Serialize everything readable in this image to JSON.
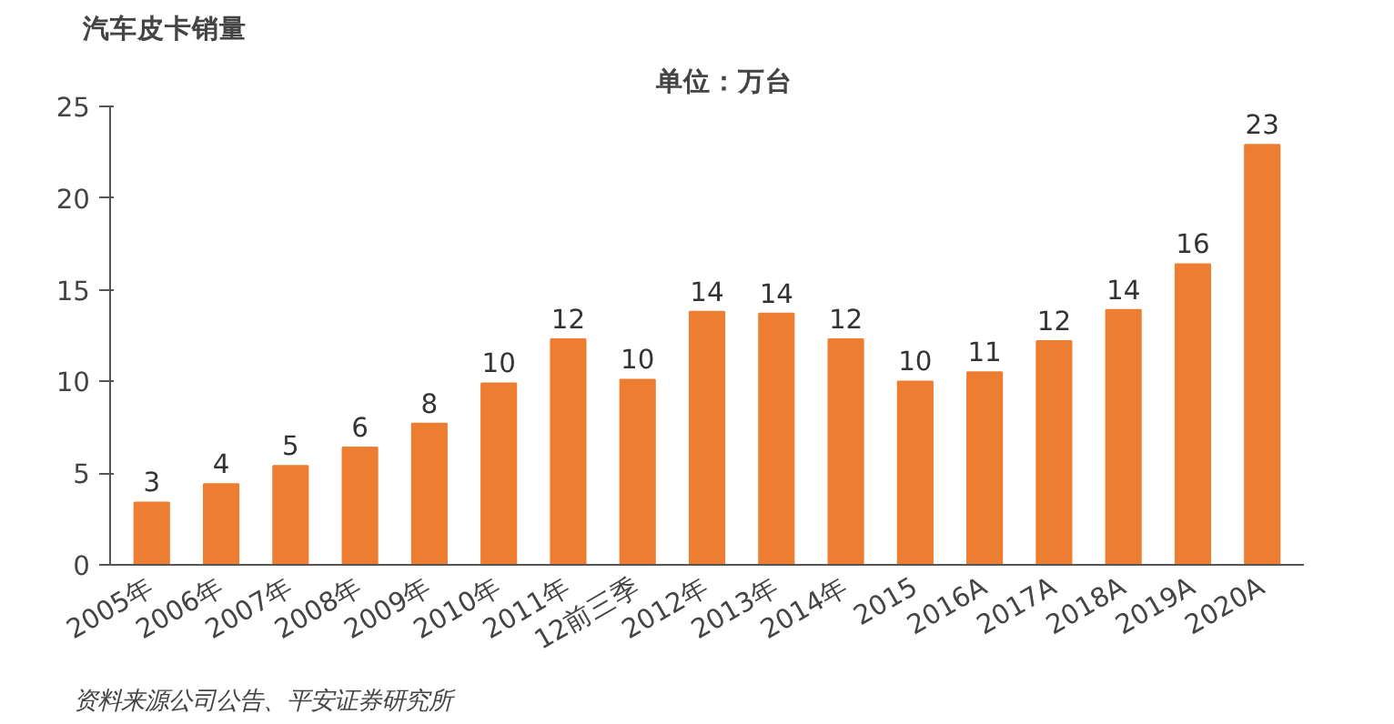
{
  "chart_data": {
    "type": "bar",
    "title": "汽车皮卡销量",
    "subtitle": "单位：万台",
    "categories": [
      "2005年",
      "2006年",
      "2007年",
      "2008年",
      "2009年",
      "2010年",
      "2011年",
      "12前三季",
      "2012年",
      "2013年",
      "2014年",
      "2015",
      "2016A",
      "2017A",
      "2018A",
      "2019A",
      "2020A"
    ],
    "values": [
      3.4,
      4.4,
      5.4,
      6.4,
      7.7,
      9.9,
      12.3,
      10.1,
      13.8,
      13.7,
      12.3,
      10.0,
      10.5,
      12.2,
      13.9,
      16.4,
      22.9
    ],
    "value_labels": [
      "3",
      "4",
      "5",
      "6",
      "8",
      "10",
      "12",
      "10",
      "14",
      "14",
      "12",
      "10",
      "11",
      "12",
      "14",
      "16",
      "23"
    ],
    "color": "#ed7d31",
    "ylim": [
      0,
      25
    ],
    "yticks": [
      0,
      5,
      10,
      15,
      20,
      25
    ],
    "grid": false,
    "annotations": [
      "资料来源公司公告、平安证券研究所"
    ]
  }
}
